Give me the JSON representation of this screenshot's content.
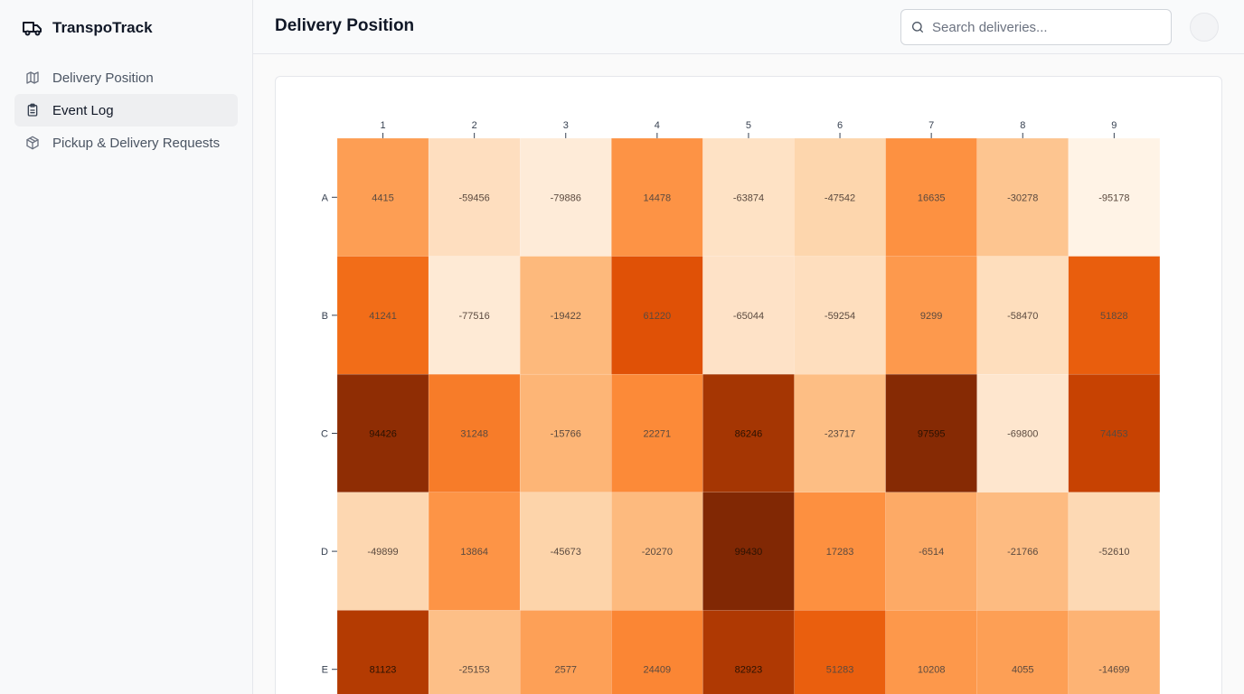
{
  "app": {
    "name": "TranspoTrack"
  },
  "sidebar": {
    "items": [
      {
        "label": "Delivery Position",
        "icon": "map-icon",
        "active": false
      },
      {
        "label": "Event Log",
        "icon": "clipboard-icon",
        "active": true
      },
      {
        "label": "Pickup & Delivery Requests",
        "icon": "package-icon",
        "active": false
      }
    ]
  },
  "header": {
    "title": "Delivery Position",
    "search_placeholder": "Search deliveries..."
  },
  "chart_data": {
    "type": "heatmap",
    "columns": [
      "1",
      "2",
      "3",
      "4",
      "5",
      "6",
      "7",
      "8",
      "9"
    ],
    "rows": [
      "A",
      "B",
      "C",
      "D",
      "E"
    ],
    "values": [
      [
        4415,
        -59456,
        -79886,
        14478,
        -63874,
        -47542,
        16635,
        -30278,
        -95178
      ],
      [
        41241,
        -77516,
        -19422,
        61220,
        -65044,
        -59254,
        9299,
        -58470,
        51828
      ],
      [
        94426,
        31248,
        -15766,
        22271,
        86246,
        -23717,
        97595,
        -69800,
        74453
      ],
      [
        -49899,
        13864,
        -45673,
        -20270,
        99430,
        17283,
        -6514,
        -21766,
        -52610
      ],
      [
        81123,
        -25153,
        2577,
        24409,
        82923,
        51283,
        10208,
        4055,
        -14699
      ]
    ],
    "color_scale": "oranges",
    "value_range": [
      -100000,
      100000
    ]
  }
}
